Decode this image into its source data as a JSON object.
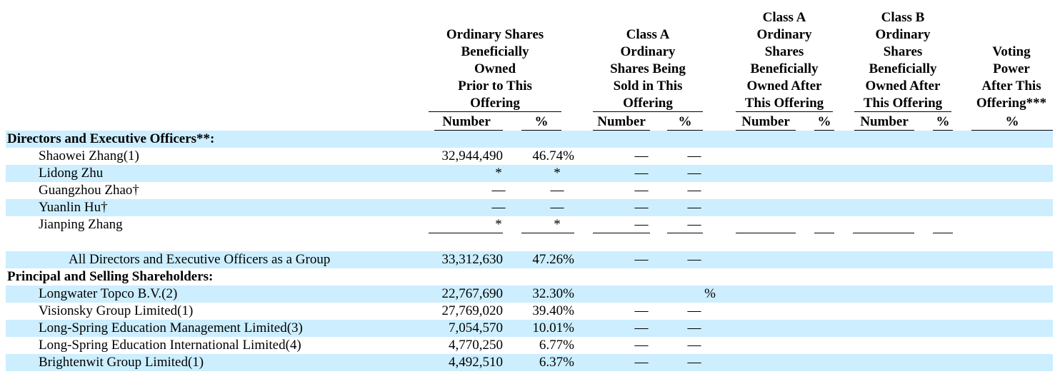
{
  "headers": {
    "ordinary": [
      "Ordinary Shares",
      "Beneficially",
      "Owned",
      "Prior to This",
      "Offering"
    ],
    "class_a_sold": [
      "Class A",
      "Ordinary",
      "Shares Being",
      "Sold in This",
      "Offering"
    ],
    "class_a_after": [
      "Class A",
      "Ordinary",
      "Shares",
      "Beneficially",
      "Owned After",
      "This Offering"
    ],
    "class_b_after": [
      "Class B",
      "Ordinary",
      "Shares",
      "Beneficially",
      "Owned After",
      "This Offering"
    ],
    "voting": [
      "Voting",
      "Power",
      "After This",
      "Offering***"
    ]
  },
  "subheaders": {
    "number": "Number",
    "percent": "%"
  },
  "sections": {
    "directors": "Directors and Executive Officers**:",
    "principal": "Principal and Selling Shareholders:"
  },
  "rows": {
    "shaowei": {
      "name": "Shaowei Zhang(1)",
      "num": "32,944,490",
      "pct": "46.74%",
      "a_num": "—",
      "a_pct": "—"
    },
    "lidong": {
      "name": "Lidong Zhu",
      "num": "*",
      "pct": "*",
      "a_num": "—",
      "a_pct": "—"
    },
    "guangzhou": {
      "name": "Guangzhou Zhao†",
      "num": "—",
      "pct": "—",
      "a_num": "—",
      "a_pct": "—"
    },
    "yuanlin": {
      "name": "Yuanlin Hu†",
      "num": "—",
      "pct": "—",
      "a_num": "—",
      "a_pct": "—"
    },
    "jianping": {
      "name": "Jianping Zhang",
      "num": "*",
      "pct": "*",
      "a_num": "—",
      "a_pct": "—"
    },
    "all_directors": {
      "name": "All Directors and Executive Officers as a Group",
      "num": "33,312,630",
      "pct": "47.26%",
      "a_num": "—",
      "a_pct": "—"
    },
    "longwater": {
      "name": "Longwater Topco B.V.(2)",
      "num": "22,767,690",
      "pct": "32.30%",
      "a_pct": "%"
    },
    "visionsky": {
      "name": "Visionsky Group Limited(1)",
      "num": "27,769,020",
      "pct": "39.40%",
      "a_num": "—",
      "a_pct": "—"
    },
    "ls_mgmt": {
      "name": "Long-Spring Education Management Limited(3)",
      "num": "7,054,570",
      "pct": "10.01%",
      "a_num": "—",
      "a_pct": "—"
    },
    "ls_intl": {
      "name": "Long-Spring Education International Limited(4)",
      "num": "4,770,250",
      "pct": "6.77%",
      "a_num": "—",
      "a_pct": "—"
    },
    "brightenwit": {
      "name": "Brightenwit Group Limited(1)",
      "num": "4,492,510",
      "pct": "6.37%",
      "a_num": "—",
      "a_pct": "—"
    }
  }
}
